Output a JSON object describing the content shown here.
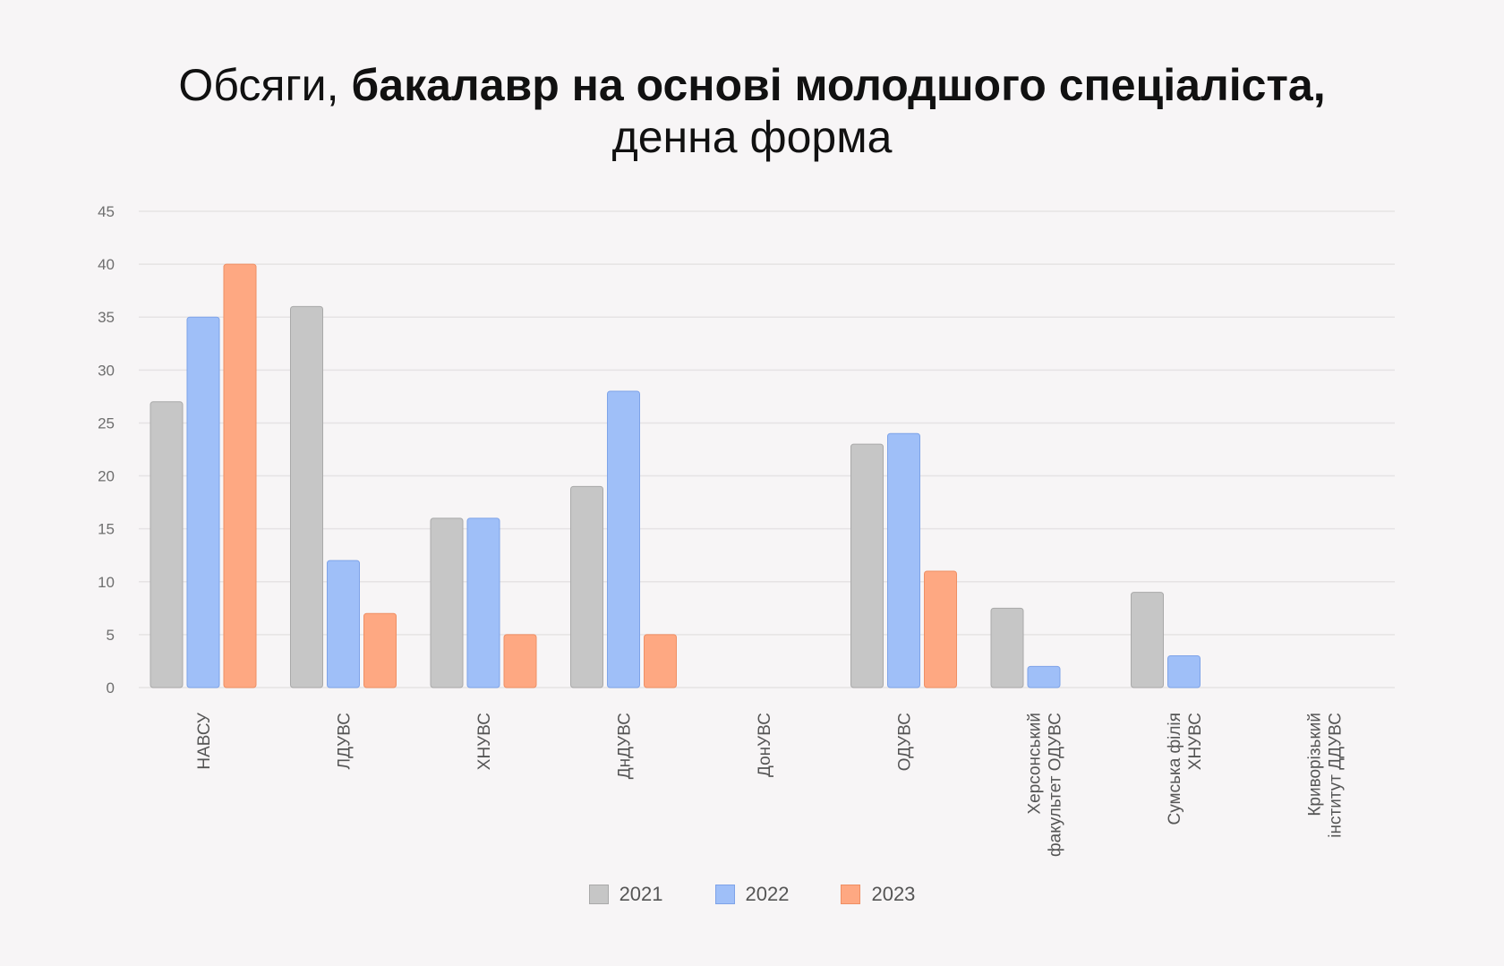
{
  "title": {
    "part1": "Обсяги, ",
    "part2_bold": "бакалавр на основі молодшого спеціаліста,",
    "line2": "денна форма"
  },
  "chart_data": {
    "type": "bar",
    "categories": [
      [
        "НАВСУ"
      ],
      [
        "ЛДУВС"
      ],
      [
        "ХНУВС"
      ],
      [
        "ДнДУВС"
      ],
      [
        "ДонУВС"
      ],
      [
        "ОДУВС"
      ],
      [
        "Херсонський",
        "факультет ОДУВС"
      ],
      [
        "Сумська філія",
        "ХНУВС"
      ],
      [
        "Криворізький",
        "інститут ДДУВС"
      ]
    ],
    "series": [
      {
        "name": "2021",
        "color": "#c6c6c6",
        "border": "#a9a9a9",
        "values": [
          27,
          36,
          16,
          19,
          0,
          23,
          7.5,
          9,
          0
        ]
      },
      {
        "name": "2022",
        "color": "#9fbff8",
        "border": "#7ea3e8",
        "values": [
          35,
          12,
          16,
          28,
          0,
          24,
          2,
          3,
          0
        ]
      },
      {
        "name": "2023",
        "color": "#fea882",
        "border": "#ef8f64",
        "values": [
          40,
          7,
          5,
          5,
          0,
          11,
          0,
          0,
          0
        ]
      }
    ],
    "ylim": [
      0,
      45
    ],
    "yticks": [
      0,
      5,
      10,
      15,
      20,
      25,
      30,
      35,
      40,
      45
    ],
    "grid": true,
    "legend": "bottom-center"
  }
}
